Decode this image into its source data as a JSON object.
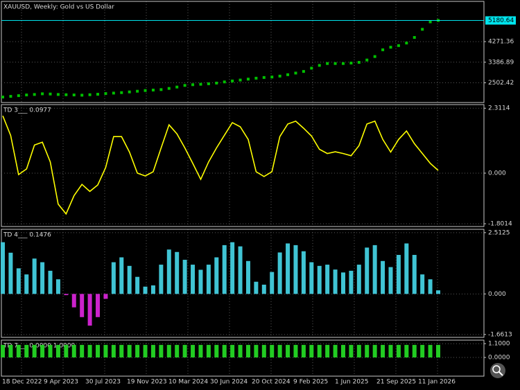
{
  "chart_data": [
    {
      "type": "point",
      "title": "XAUUSD, Weekly:  Gold vs US Dollar",
      "color": "#00c000",
      "values": [
        1890,
        1920,
        1950,
        1980,
        2000,
        2030,
        2020,
        2000,
        1990,
        1980,
        1970,
        1990,
        2010,
        2040,
        2060,
        2080,
        2110,
        2140,
        2170,
        2190,
        2210,
        2260,
        2320,
        2390,
        2420,
        2440,
        2460,
        2490,
        2540,
        2580,
        2620,
        2660,
        2700,
        2730,
        2750,
        2790,
        2850,
        2920,
        2990,
        3130,
        3250,
        3330,
        3330,
        3330,
        3350,
        3380,
        3480,
        3630,
        3920,
        4030,
        4100,
        4210,
        4450,
        4800,
        5120,
        5180
      ],
      "last_price": 5180.64,
      "last_price_color": "#00e5ee",
      "ylim": [
        1655,
        5999
      ],
      "yticks": [
        2502.42,
        3386.89,
        4271.36
      ],
      "grid": true
    },
    {
      "type": "line",
      "title": "TD 3___ 0.0977",
      "color": "#ffff00",
      "values": [
        2.04,
        1.34,
        -0.05,
        0.15,
        1.0,
        1.1,
        0.4,
        -1.1,
        -1.45,
        -0.8,
        -0.4,
        -0.65,
        -0.42,
        0.2,
        1.3,
        1.3,
        0.75,
        0.0,
        -0.1,
        0.05,
        0.9,
        1.72,
        1.4,
        0.9,
        0.35,
        -0.22,
        0.4,
        0.9,
        1.35,
        1.8,
        1.65,
        1.2,
        0.05,
        -0.12,
        0.05,
        1.3,
        1.75,
        1.85,
        1.6,
        1.32,
        0.85,
        0.7,
        0.76,
        0.7,
        0.62,
        0.98,
        1.75,
        1.85,
        1.2,
        0.75,
        1.2,
        1.5,
        1.05,
        0.7,
        0.35,
        0.0977
      ],
      "ylim": [
        -1.9,
        2.44
      ],
      "yticks": [
        -1.8014,
        {
          "value": 0,
          "label": "0.000"
        },
        2.3114
      ],
      "grid": true
    },
    {
      "type": "histogram",
      "title": "TD 4___ 0.1476",
      "color": "#40c4d4",
      "negative_color": "#cc22cc",
      "values": [
        2.12,
        1.69,
        1.05,
        0.8,
        1.45,
        1.3,
        0.95,
        0.6,
        -0.05,
        -0.55,
        -0.95,
        -1.3,
        -0.95,
        -0.2,
        1.3,
        1.5,
        1.15,
        0.7,
        0.3,
        0.35,
        1.2,
        1.82,
        1.72,
        1.4,
        1.2,
        0.99,
        1.2,
        1.5,
        2.0,
        2.12,
        1.95,
        1.35,
        0.5,
        0.38,
        0.9,
        1.7,
        2.07,
        2.0,
        1.75,
        1.3,
        1.15,
        1.2,
        1.0,
        0.88,
        0.95,
        1.2,
        1.9,
        2.0,
        1.35,
        1.1,
        1.6,
        2.07,
        1.6,
        0.8,
        0.6,
        0.1476
      ],
      "ylim": [
        -1.78,
        2.65
      ],
      "yticks": [
        -1.6613,
        {
          "value": 0,
          "label": "0.000"
        },
        2.5125
      ],
      "grid": true
    },
    {
      "type": "histogram",
      "title": "TD 7___ 0.0000 1.0000",
      "color": "#22cc22",
      "negative_color": "#22cc22",
      "values": [
        1,
        1,
        1,
        1,
        1,
        1,
        1,
        1,
        1,
        1,
        1,
        1,
        1,
        1,
        1,
        1,
        1,
        1,
        1,
        1,
        1,
        1,
        1,
        1,
        1,
        1,
        1,
        1,
        1,
        1,
        1,
        1,
        1,
        1,
        1,
        1,
        1,
        1,
        1,
        1,
        1,
        1,
        1,
        1,
        1,
        1,
        1,
        1,
        1,
        1,
        1,
        1,
        1,
        1,
        1,
        1
      ],
      "ylim": [
        -1.49,
        1.38
      ],
      "yticks": [
        {
          "value": 0,
          "label": "0.0000"
        },
        {
          "value": 1.1,
          "label": "1.1000"
        }
      ],
      "grid": true
    }
  ],
  "time_axis": {
    "labels": [
      "18 Dec 2022",
      "9 Apr 2023",
      "30 Jul 2023",
      "19 Nov 2023",
      "10 Mar 2024",
      "30 Jun 2024",
      "20 Oct 2024",
      "9 Feb 2025",
      "1 Jun 2025",
      "21 Sep 2025",
      "11 Jan 2026"
    ]
  }
}
